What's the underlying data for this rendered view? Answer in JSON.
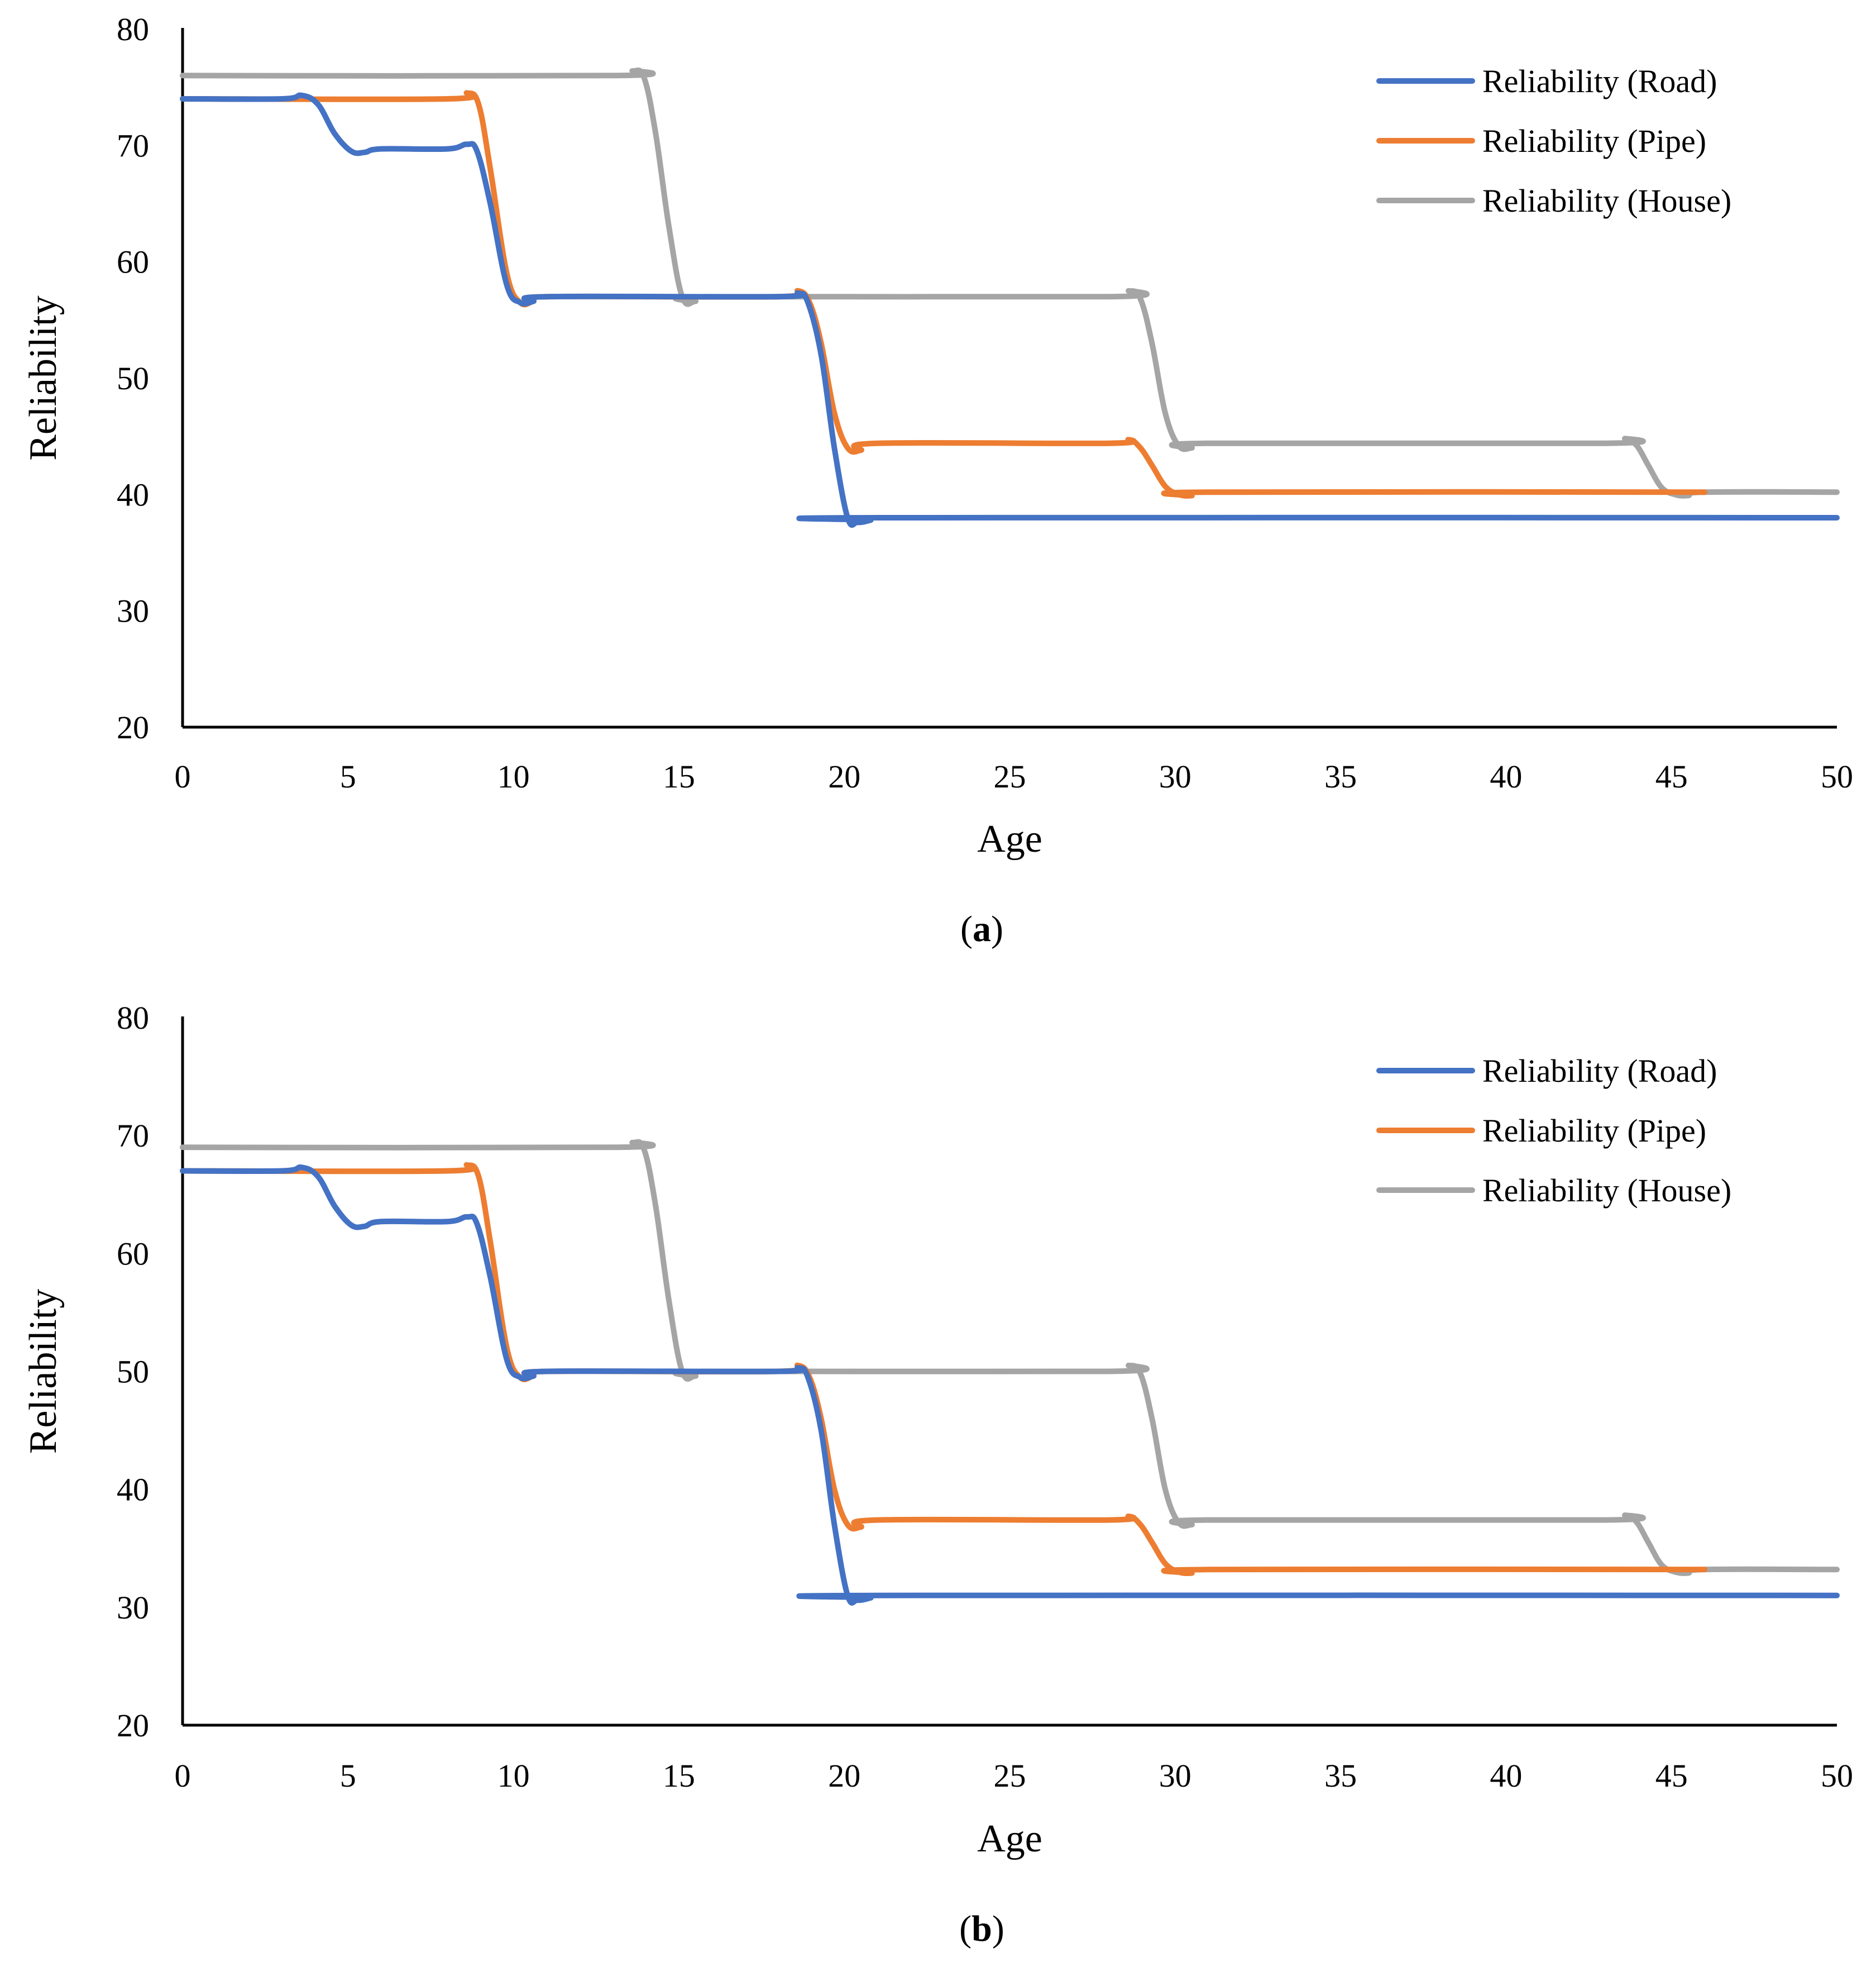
{
  "chart_data": [
    {
      "type": "line",
      "panel": "a",
      "caption_open": "(",
      "caption_label": "a",
      "caption_close": ")",
      "xlabel": "Age",
      "ylabel": "Reliability",
      "xlim": [
        0,
        50
      ],
      "ylim": [
        20,
        80
      ],
      "xticks": [
        0,
        5,
        10,
        15,
        20,
        25,
        30,
        35,
        40,
        45,
        50
      ],
      "yticks": [
        20,
        30,
        40,
        50,
        60,
        70,
        80
      ],
      "legend_position": "top-right",
      "series": [
        {
          "name": "Reliability (Road)",
          "color": "#4472C4",
          "points": [
            [
              0,
              74
            ],
            [
              3,
              74
            ],
            [
              3.6,
              74.3
            ],
            [
              4.1,
              73.5
            ],
            [
              4.6,
              71
            ],
            [
              5.1,
              69.5
            ],
            [
              5.5,
              69.4
            ],
            [
              6,
              69.7
            ],
            [
              8,
              69.7
            ],
            [
              8.6,
              70.1
            ],
            [
              8.9,
              69.5
            ],
            [
              9.3,
              65
            ],
            [
              9.8,
              58
            ],
            [
              10.2,
              56.5
            ],
            [
              10.6,
              56.6
            ],
            [
              11,
              57
            ],
            [
              18,
              57
            ],
            [
              18.6,
              57.3
            ],
            [
              18.9,
              56.5
            ],
            [
              19.3,
              52
            ],
            [
              19.7,
              44
            ],
            [
              20.1,
              38
            ],
            [
              20.4,
              37.6
            ],
            [
              20.8,
              37.8
            ],
            [
              21,
              38
            ],
            [
              50,
              38
            ]
          ]
        },
        {
          "name": "Reliability (Pipe)",
          "color": "#ED7D31",
          "points": [
            [
              0,
              74
            ],
            [
              8,
              74
            ],
            [
              8.6,
              74.5
            ],
            [
              8.95,
              73.5
            ],
            [
              9.3,
              68
            ],
            [
              9.8,
              59
            ],
            [
              10.2,
              56.5
            ],
            [
              10.6,
              56.6
            ],
            [
              11,
              57
            ],
            [
              18,
              57
            ],
            [
              18.6,
              57.5
            ],
            [
              18.95,
              56.5
            ],
            [
              19.3,
              53
            ],
            [
              19.7,
              47
            ],
            [
              20.1,
              44
            ],
            [
              20.5,
              43.8
            ],
            [
              21,
              44.4
            ],
            [
              28,
              44.4
            ],
            [
              28.6,
              44.7
            ],
            [
              28.95,
              44
            ],
            [
              29.3,
              42.5
            ],
            [
              29.7,
              40.7
            ],
            [
              30.1,
              40
            ],
            [
              30.5,
              39.9
            ],
            [
              31,
              40.2
            ],
            [
              46,
              40.2
            ]
          ]
        },
        {
          "name": "Reliability (House)",
          "color": "#A5A5A5",
          "points": [
            [
              0,
              76
            ],
            [
              13,
              76
            ],
            [
              13.6,
              76.4
            ],
            [
              13.95,
              75.8
            ],
            [
              14.3,
              71
            ],
            [
              14.7,
              63
            ],
            [
              15.1,
              57
            ],
            [
              15.5,
              56.6
            ],
            [
              16,
              57
            ],
            [
              28,
              57
            ],
            [
              28.6,
              57.5
            ],
            [
              28.95,
              56.8
            ],
            [
              29.3,
              53
            ],
            [
              29.7,
              47
            ],
            [
              30.1,
              44.2
            ],
            [
              30.5,
              44
            ],
            [
              31,
              44.4
            ],
            [
              43,
              44.4
            ],
            [
              43.6,
              44.8
            ],
            [
              43.95,
              44.2
            ],
            [
              44.3,
              42.5
            ],
            [
              44.7,
              40.6
            ],
            [
              45.1,
              40
            ],
            [
              45.5,
              39.9
            ],
            [
              46,
              40.2
            ],
            [
              50,
              40.2
            ]
          ]
        }
      ]
    },
    {
      "type": "line",
      "panel": "b",
      "caption_open": "(",
      "caption_label": "b",
      "caption_close": ")",
      "xlabel": "Age",
      "ylabel": "Reliability",
      "xlim": [
        0,
        50
      ],
      "ylim": [
        20,
        80
      ],
      "xticks": [
        0,
        5,
        10,
        15,
        20,
        25,
        30,
        35,
        40,
        45,
        50
      ],
      "yticks": [
        20,
        30,
        40,
        50,
        60,
        70,
        80
      ],
      "legend_position": "top-right",
      "series": [
        {
          "name": "Reliability (Road)",
          "color": "#4472C4",
          "points": [
            [
              0,
              67
            ],
            [
              3,
              67
            ],
            [
              3.6,
              67.3
            ],
            [
              4.1,
              66.5
            ],
            [
              4.6,
              64
            ],
            [
              5.1,
              62.4
            ],
            [
              5.5,
              62.3
            ],
            [
              6,
              62.7
            ],
            [
              8,
              62.7
            ],
            [
              8.6,
              63.1
            ],
            [
              8.9,
              62.5
            ],
            [
              9.3,
              58
            ],
            [
              9.8,
              51
            ],
            [
              10.2,
              49.5
            ],
            [
              10.6,
              49.6
            ],
            [
              11,
              50
            ],
            [
              18,
              50
            ],
            [
              18.6,
              50.3
            ],
            [
              18.9,
              49.5
            ],
            [
              19.3,
              45
            ],
            [
              19.7,
              37
            ],
            [
              20.1,
              31
            ],
            [
              20.4,
              30.6
            ],
            [
              20.8,
              30.8
            ],
            [
              21,
              31
            ],
            [
              50,
              31
            ]
          ]
        },
        {
          "name": "Reliability (Pipe)",
          "color": "#ED7D31",
          "points": [
            [
              0,
              67
            ],
            [
              8,
              67
            ],
            [
              8.6,
              67.5
            ],
            [
              8.95,
              66.5
            ],
            [
              9.3,
              61
            ],
            [
              9.8,
              52
            ],
            [
              10.2,
              49.5
            ],
            [
              10.6,
              49.6
            ],
            [
              11,
              50
            ],
            [
              18,
              50
            ],
            [
              18.6,
              50.5
            ],
            [
              18.95,
              49.5
            ],
            [
              19.3,
              46
            ],
            [
              19.7,
              40
            ],
            [
              20.1,
              37
            ],
            [
              20.5,
              36.8
            ],
            [
              21,
              37.4
            ],
            [
              28,
              37.4
            ],
            [
              28.6,
              37.7
            ],
            [
              28.95,
              37
            ],
            [
              29.3,
              35.5
            ],
            [
              29.7,
              33.7
            ],
            [
              30.1,
              33
            ],
            [
              30.5,
              32.9
            ],
            [
              31,
              33.2
            ],
            [
              46,
              33.2
            ]
          ]
        },
        {
          "name": "Reliability (House)",
          "color": "#A5A5A5",
          "points": [
            [
              0,
              69
            ],
            [
              13,
              69
            ],
            [
              13.6,
              69.4
            ],
            [
              13.95,
              68.8
            ],
            [
              14.3,
              64
            ],
            [
              14.7,
              56
            ],
            [
              15.1,
              50
            ],
            [
              15.5,
              49.6
            ],
            [
              16,
              50
            ],
            [
              28,
              50
            ],
            [
              28.6,
              50.5
            ],
            [
              28.95,
              49.8
            ],
            [
              29.3,
              46
            ],
            [
              29.7,
              40
            ],
            [
              30.1,
              37.2
            ],
            [
              30.5,
              37
            ],
            [
              31,
              37.4
            ],
            [
              43,
              37.4
            ],
            [
              43.6,
              37.8
            ],
            [
              43.95,
              37.2
            ],
            [
              44.3,
              35.5
            ],
            [
              44.7,
              33.6
            ],
            [
              45.1,
              33
            ],
            [
              45.5,
              32.9
            ],
            [
              46,
              33.2
            ],
            [
              50,
              33.2
            ]
          ]
        }
      ]
    }
  ]
}
